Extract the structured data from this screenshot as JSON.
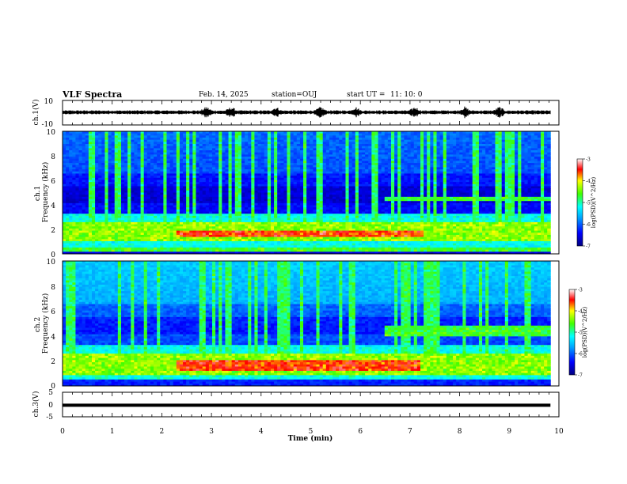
{
  "header": {
    "title": "VLF Spectra",
    "date": "Feb. 14, 2025",
    "station": "station=OUJ",
    "start_label": "start  UT  =",
    "start_time": "11: 10: 0"
  },
  "chart_data": [
    {
      "type": "line",
      "id": "ch1-waveform",
      "ylabel": "ch.1(V)",
      "ylim": [
        -10,
        10
      ],
      "y_ticks": [
        "10",
        "-10"
      ],
      "xlim": [
        0,
        10
      ],
      "grid": false,
      "series": [
        {
          "color": "#000000"
        }
      ]
    },
    {
      "type": "heatmap",
      "id": "ch1-spectrogram",
      "ylabel": "ch.1\nFrequency (kHz)",
      "ylim": [
        0,
        10
      ],
      "y_ticks": [
        "0",
        "2",
        "4",
        "6",
        "8",
        "10"
      ],
      "xlim": [
        0,
        9.83
      ],
      "colorbar": {
        "label": "log(PSD)(V^2/Hz)",
        "range": [
          -7,
          -3
        ],
        "ticks": [
          "-3",
          "-4",
          "-5",
          "-6",
          "-7"
        ]
      },
      "features": [
        {
          "band_khz": [
            1.0,
            2.6
          ],
          "level": "high",
          "t_range_min": [
            0,
            9.83
          ]
        },
        {
          "band_khz": [
            1.3,
            1.9
          ],
          "level": "max",
          "t_range_min": [
            2.3,
            7.3
          ]
        },
        {
          "band_khz": [
            4.3,
            4.7
          ],
          "level": "mid",
          "t_range_min": [
            6.5,
            9.8
          ]
        },
        {
          "band_khz": [
            0.2,
            0.6
          ],
          "level": "mid",
          "t_range_min": [
            0,
            9.83
          ]
        }
      ]
    },
    {
      "type": "heatmap",
      "id": "ch2-spectrogram",
      "ylabel": "ch.2\nFrequency (kHz)",
      "ylim": [
        0,
        10
      ],
      "y_ticks": [
        "0",
        "2",
        "4",
        "6",
        "8",
        "10"
      ],
      "xlim": [
        0,
        9.83
      ],
      "colorbar": {
        "label": "log(PSD)(V^2/Hz)",
        "range": [
          -7,
          -3
        ],
        "ticks": [
          "-3",
          "-4",
          "-5",
          "-6",
          "-7"
        ]
      },
      "features": [
        {
          "band_khz": [
            0.8,
            2.6
          ],
          "level": "high",
          "t_range_min": [
            0,
            9.83
          ]
        },
        {
          "band_khz": [
            1.2,
            2.0
          ],
          "level": "max",
          "t_range_min": [
            2.3,
            7.2
          ]
        },
        {
          "band_khz": [
            4.0,
            4.8
          ],
          "level": "mid",
          "t_range_min": [
            6.5,
            9.8
          ]
        }
      ]
    },
    {
      "type": "line",
      "id": "ch3-waveform",
      "ylabel": "ch.3(V)",
      "ylim": [
        -5,
        5
      ],
      "y_ticks": [
        "5",
        "0",
        "-5"
      ],
      "xlim": [
        0,
        10
      ],
      "series": [
        {
          "constant": -0.3,
          "color": "#000000"
        }
      ]
    }
  ],
  "x_axis": {
    "label": "Time  (min)",
    "ticks": [
      "0",
      "1",
      "2",
      "3",
      "4",
      "5",
      "6",
      "7",
      "8",
      "9",
      "10"
    ]
  }
}
